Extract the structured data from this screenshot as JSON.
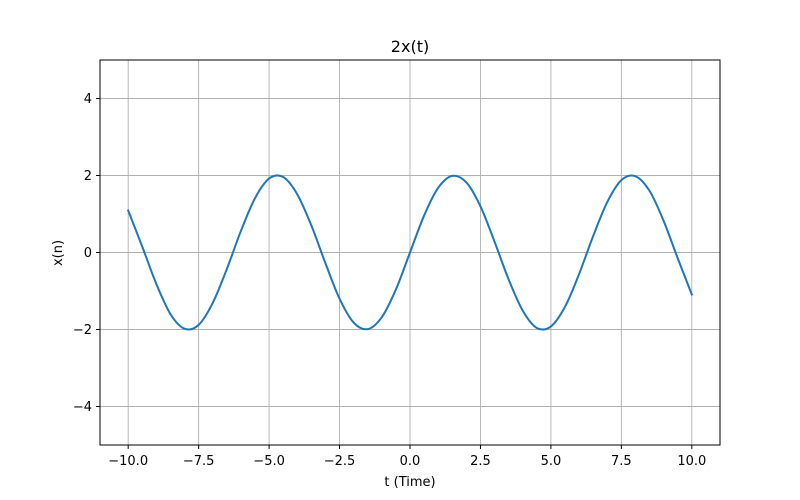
{
  "chart_data": {
    "type": "line",
    "title": "2x(t)",
    "xlabel": "t (Time)",
    "ylabel": "x(n)",
    "xlim": [
      -11.0,
      11.0
    ],
    "ylim": [
      -5.0,
      5.0
    ],
    "grid": true,
    "x_ticks": [
      -10.0,
      -7.5,
      -5.0,
      -2.5,
      0.0,
      2.5,
      5.0,
      7.5,
      10.0
    ],
    "x_tick_labels": [
      "−10.0",
      "−7.5",
      "−5.0",
      "−2.5",
      "0.0",
      "2.5",
      "5.0",
      "7.5",
      "10.0"
    ],
    "y_ticks": [
      -4,
      -2,
      0,
      2,
      4
    ],
    "y_tick_labels": [
      "−4",
      "−2",
      "0",
      "2",
      "4"
    ],
    "series": [
      {
        "color": "#1f77b4",
        "x": [
          -10.0,
          -9.5,
          -9.0,
          -8.5,
          -8.0,
          -7.5,
          -7.0,
          -6.5,
          -6.0,
          -5.5,
          -5.0,
          -4.5,
          -4.0,
          -3.5,
          -3.0,
          -2.5,
          -2.0,
          -1.5,
          -1.0,
          -0.5,
          0.0,
          0.5,
          1.0,
          1.5,
          2.0,
          2.5,
          3.0,
          3.5,
          4.0,
          4.5,
          5.0,
          5.5,
          6.0,
          6.5,
          7.0,
          7.5,
          8.0,
          8.5,
          9.0,
          9.5,
          10.0
        ],
        "y": [
          1.09,
          0.15,
          -0.82,
          -1.6,
          -1.98,
          -1.88,
          -1.31,
          -0.43,
          0.56,
          1.41,
          1.92,
          1.96,
          1.51,
          0.7,
          -0.28,
          -1.2,
          -1.82,
          -1.99,
          -1.68,
          -0.96,
          0.0,
          0.96,
          1.68,
          1.99,
          1.82,
          1.2,
          0.28,
          -0.7,
          -1.51,
          -1.96,
          -1.92,
          -1.41,
          -0.56,
          0.43,
          1.31,
          1.88,
          1.98,
          1.6,
          0.82,
          -0.15,
          -1.09
        ]
      }
    ]
  },
  "colors": {
    "line": "#1f77b4",
    "grid": "#b0b0b0",
    "axes": "#000000"
  }
}
